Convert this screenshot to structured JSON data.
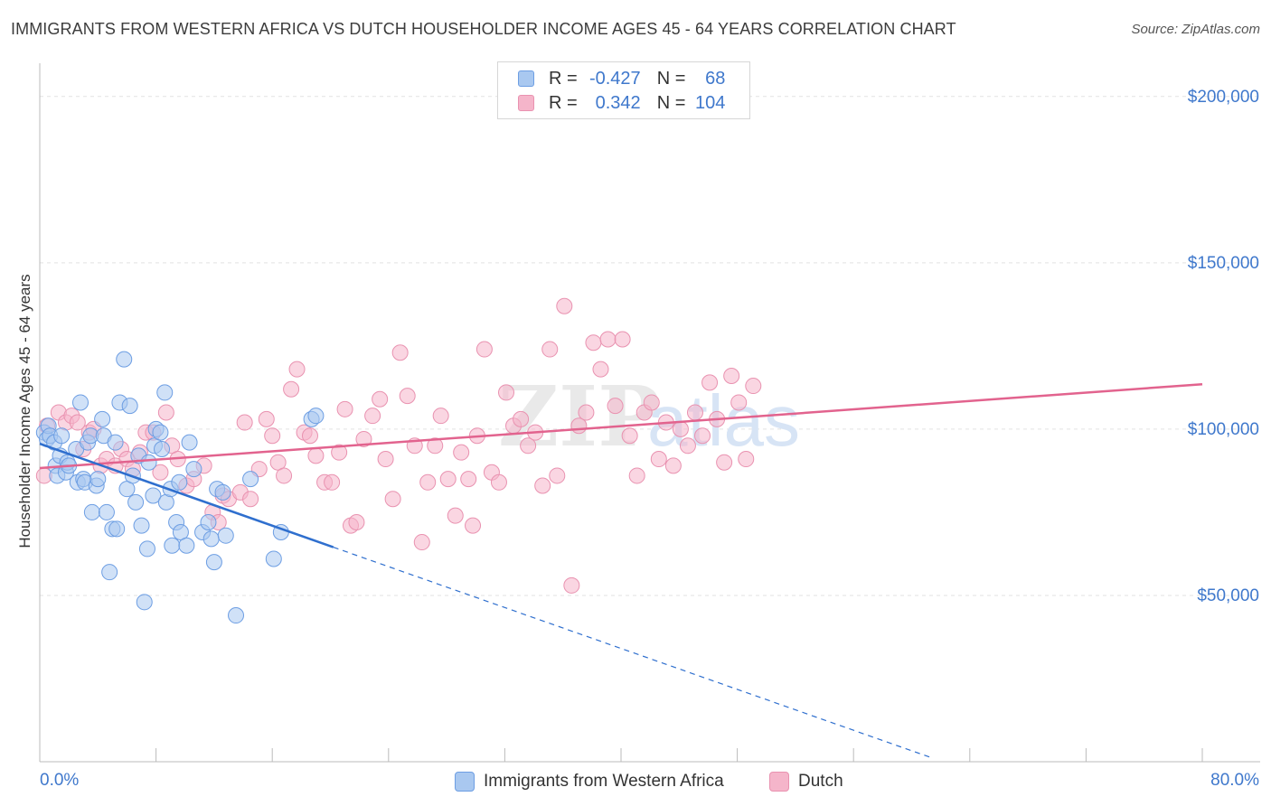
{
  "header": {
    "title": "IMMIGRANTS FROM WESTERN AFRICA VS DUTCH HOUSEHOLDER INCOME AGES 45 - 64 YEARS CORRELATION CHART",
    "source": "Source: ZipAtlas.com"
  },
  "watermark": {
    "zip": "ZIP",
    "atlas": "atlas"
  },
  "legend": {
    "rows": [
      {
        "r_label": "R =",
        "r_value": "-0.427",
        "n_label": "N =",
        "n_value": "68"
      },
      {
        "r_label": "R =",
        "r_value": "0.342",
        "n_label": "N =",
        "n_value": "104"
      }
    ]
  },
  "bottom_legend": [
    {
      "label": "Immigrants from Western Africa"
    },
    {
      "label": "Dutch"
    }
  ],
  "colors": {
    "blue_fill": "#a9c8f0",
    "blue_stroke": "#6d9ee3",
    "blue_line": "#2f6fce",
    "pink_fill": "#f5b5ca",
    "pink_stroke": "#e992b0",
    "pink_line": "#e2638e",
    "axis_label": "#3f78cc",
    "grid": "#e2e2e2"
  },
  "chart_data": {
    "type": "scatter",
    "title": "IMMIGRANTS FROM WESTERN AFRICA VS DUTCH HOUSEHOLDER INCOME AGES 45 - 64 YEARS CORRELATION CHART",
    "xlabel": "",
    "ylabel": "Householder Income Ages 45 - 64 years",
    "xlim": [
      0,
      80
    ],
    "ylim": [
      0,
      210000
    ],
    "x_tick_labels": [
      "0.0%",
      "80.0%"
    ],
    "y_ticks": [
      50000,
      100000,
      150000,
      200000
    ],
    "y_tick_labels": [
      "$50,000",
      "$100,000",
      "$150,000",
      "$200,000"
    ],
    "grid": true,
    "legend_position": "top-center",
    "series": [
      {
        "name": "Immigrants from Western Africa",
        "color": "#a9c8f0",
        "trend": {
          "x_solid": [
            0,
            20.2
          ],
          "y_solid": [
            95600,
            64500
          ],
          "x_dashed": [
            20.2,
            61.5
          ],
          "y_dashed": [
            64500,
            1000
          ]
        },
        "points": [
          [
            0.3,
            99000
          ],
          [
            0.5,
            97000
          ],
          [
            0.6,
            101000
          ],
          [
            0.7,
            98000
          ],
          [
            1.0,
            96000
          ],
          [
            1.1,
            89000
          ],
          [
            1.2,
            86000
          ],
          [
            1.4,
            92000
          ],
          [
            1.5,
            98000
          ],
          [
            1.8,
            87000
          ],
          [
            1.9,
            90000
          ],
          [
            2.0,
            89000
          ],
          [
            2.5,
            94000
          ],
          [
            2.6,
            84000
          ],
          [
            2.8,
            108000
          ],
          [
            3.0,
            85000
          ],
          [
            3.1,
            84000
          ],
          [
            3.3,
            96000
          ],
          [
            3.5,
            98000
          ],
          [
            3.6,
            75000
          ],
          [
            3.9,
            83000
          ],
          [
            4.0,
            85000
          ],
          [
            4.3,
            103000
          ],
          [
            4.4,
            98000
          ],
          [
            4.6,
            75000
          ],
          [
            4.8,
            57000
          ],
          [
            5.0,
            70000
          ],
          [
            5.2,
            96000
          ],
          [
            5.3,
            70000
          ],
          [
            5.5,
            108000
          ],
          [
            5.8,
            121000
          ],
          [
            6.0,
            82000
          ],
          [
            6.2,
            107000
          ],
          [
            6.4,
            86000
          ],
          [
            6.6,
            78000
          ],
          [
            6.8,
            92000
          ],
          [
            7.0,
            71000
          ],
          [
            7.2,
            48000
          ],
          [
            7.4,
            64000
          ],
          [
            7.5,
            90000
          ],
          [
            7.8,
            80000
          ],
          [
            7.9,
            95000
          ],
          [
            8.0,
            100000
          ],
          [
            8.3,
            99000
          ],
          [
            8.4,
            94000
          ],
          [
            8.6,
            111000
          ],
          [
            8.7,
            78000
          ],
          [
            9.0,
            82000
          ],
          [
            9.1,
            65000
          ],
          [
            9.4,
            72000
          ],
          [
            9.6,
            84000
          ],
          [
            9.7,
            69000
          ],
          [
            10.1,
            65000
          ],
          [
            10.3,
            96000
          ],
          [
            10.6,
            88000
          ],
          [
            11.2,
            69000
          ],
          [
            11.6,
            72000
          ],
          [
            11.8,
            67000
          ],
          [
            12.0,
            60000
          ],
          [
            12.2,
            82000
          ],
          [
            12.6,
            81000
          ],
          [
            12.8,
            68000
          ],
          [
            13.5,
            44000
          ],
          [
            14.5,
            85000
          ],
          [
            16.1,
            61000
          ],
          [
            16.6,
            69000
          ],
          [
            18.7,
            103000
          ],
          [
            19.0,
            104000
          ]
        ]
      },
      {
        "name": "Dutch",
        "color": "#f5b5ca",
        "trend": {
          "x": [
            0,
            80
          ],
          "y": [
            88300,
            113500
          ]
        },
        "points": [
          [
            0.3,
            86000
          ],
          [
            0.5,
            101000
          ],
          [
            1.3,
            105000
          ],
          [
            1.8,
            102000
          ],
          [
            2.2,
            104000
          ],
          [
            2.6,
            102000
          ],
          [
            3.0,
            94000
          ],
          [
            3.4,
            99000
          ],
          [
            3.7,
            100000
          ],
          [
            4.2,
            89000
          ],
          [
            4.6,
            91000
          ],
          [
            5.2,
            89000
          ],
          [
            5.6,
            94000
          ],
          [
            6.0,
            91000
          ],
          [
            6.4,
            88000
          ],
          [
            6.9,
            93000
          ],
          [
            7.3,
            99000
          ],
          [
            7.8,
            99000
          ],
          [
            8.3,
            87000
          ],
          [
            8.7,
            105000
          ],
          [
            9.1,
            95000
          ],
          [
            9.5,
            91000
          ],
          [
            10.1,
            83000
          ],
          [
            10.6,
            85000
          ],
          [
            11.3,
            89000
          ],
          [
            11.9,
            75000
          ],
          [
            12.3,
            72000
          ],
          [
            12.6,
            80000
          ],
          [
            13.0,
            79000
          ],
          [
            13.8,
            81000
          ],
          [
            14.1,
            102000
          ],
          [
            14.5,
            79000
          ],
          [
            15.1,
            88000
          ],
          [
            15.6,
            103000
          ],
          [
            16.0,
            98000
          ],
          [
            16.4,
            90000
          ],
          [
            16.8,
            86000
          ],
          [
            17.3,
            112000
          ],
          [
            17.7,
            118000
          ],
          [
            18.2,
            99000
          ],
          [
            18.6,
            98000
          ],
          [
            19.0,
            92000
          ],
          [
            19.6,
            84000
          ],
          [
            20.1,
            84000
          ],
          [
            20.6,
            93000
          ],
          [
            21.0,
            106000
          ],
          [
            21.4,
            71000
          ],
          [
            21.8,
            72000
          ],
          [
            22.3,
            97000
          ],
          [
            22.9,
            104000
          ],
          [
            23.4,
            109000
          ],
          [
            23.8,
            91000
          ],
          [
            24.3,
            79000
          ],
          [
            24.8,
            123000
          ],
          [
            25.3,
            110000
          ],
          [
            25.8,
            95000
          ],
          [
            26.3,
            66000
          ],
          [
            26.7,
            84000
          ],
          [
            27.2,
            95000
          ],
          [
            27.6,
            104000
          ],
          [
            28.1,
            85000
          ],
          [
            28.6,
            74000
          ],
          [
            29.0,
            93000
          ],
          [
            29.5,
            85000
          ],
          [
            29.8,
            71000
          ],
          [
            30.1,
            98000
          ],
          [
            30.6,
            124000
          ],
          [
            31.1,
            87000
          ],
          [
            31.6,
            84000
          ],
          [
            32.1,
            111000
          ],
          [
            32.6,
            101000
          ],
          [
            33.1,
            103000
          ],
          [
            33.6,
            95000
          ],
          [
            34.1,
            99000
          ],
          [
            34.6,
            83000
          ],
          [
            35.1,
            124000
          ],
          [
            35.6,
            86000
          ],
          [
            36.1,
            137000
          ],
          [
            36.6,
            53000
          ],
          [
            37.1,
            101000
          ],
          [
            37.6,
            105000
          ],
          [
            38.1,
            126000
          ],
          [
            38.6,
            118000
          ],
          [
            39.1,
            127000
          ],
          [
            39.6,
            107000
          ],
          [
            40.1,
            127000
          ],
          [
            40.6,
            98000
          ],
          [
            41.1,
            86000
          ],
          [
            41.6,
            105000
          ],
          [
            42.1,
            108000
          ],
          [
            42.6,
            91000
          ],
          [
            43.1,
            102000
          ],
          [
            43.6,
            89000
          ],
          [
            44.1,
            100000
          ],
          [
            44.6,
            95000
          ],
          [
            45.1,
            105000
          ],
          [
            45.6,
            98000
          ],
          [
            46.1,
            114000
          ],
          [
            46.6,
            103000
          ],
          [
            47.1,
            90000
          ],
          [
            47.6,
            116000
          ],
          [
            48.1,
            108000
          ],
          [
            48.6,
            91000
          ],
          [
            49.1,
            113000
          ]
        ]
      }
    ]
  }
}
